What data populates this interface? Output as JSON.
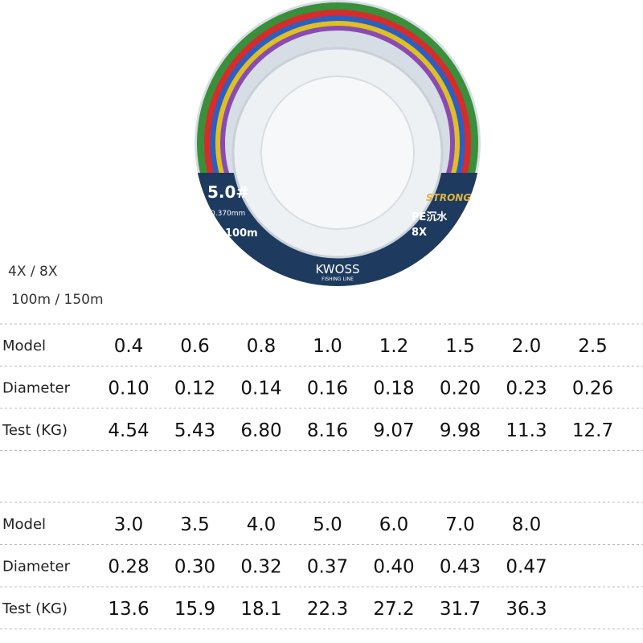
{
  "spool": {
    "size": "5.0#",
    "diameter": "0.370mm",
    "length": "100m",
    "tag": "STRONG",
    "type": "PE沉水",
    "weave": "8X",
    "brand": "KWOSS",
    "brand_sub": "FISHING LINE"
  },
  "options": [
    "4X / 8X",
    "100m / 150m"
  ],
  "tables": [
    {
      "rows": [
        [
          "Model",
          "0.4",
          "0.6",
          "0.8",
          "1.0",
          "1.2",
          "1.5",
          "2.0",
          "2.5"
        ],
        [
          "Diameter",
          "0.10",
          "0.12",
          "0.14",
          "0.16",
          "0.18",
          "0.20",
          "0.23",
          "0.26"
        ],
        [
          "Test (KG)",
          "4.54",
          "5.43",
          "6.80",
          "8.16",
          "9.07",
          "9.98",
          "11.3",
          "12.7"
        ]
      ]
    },
    {
      "rows": [
        [
          "Model",
          "3.0",
          "3.5",
          "4.0",
          "5.0",
          "6.0",
          "7.0",
          "8.0"
        ],
        [
          "Diameter",
          "0.28",
          "0.30",
          "0.32",
          "0.37",
          "0.40",
          "0.43",
          "0.47"
        ],
        [
          "Test (KG)",
          "13.6",
          "15.9",
          "18.1",
          "22.3",
          "27.2",
          "31.7",
          "36.3"
        ]
      ]
    }
  ]
}
